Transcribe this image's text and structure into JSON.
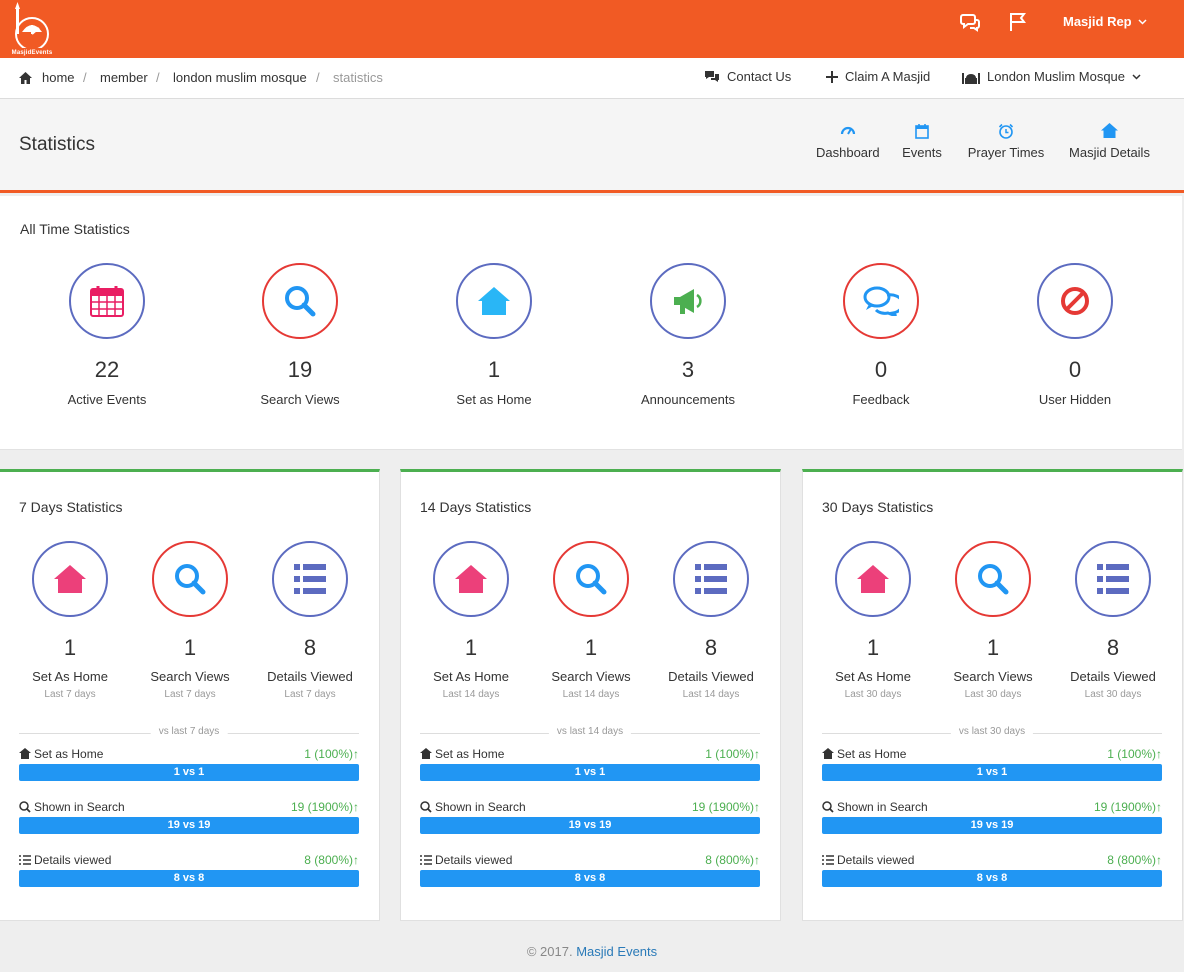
{
  "brand": {
    "logo_text": "MasjidEvents",
    "color": "#f15a24"
  },
  "topbar": {
    "user": "Masjid Rep",
    "icons": [
      "chat-icon",
      "flag-icon"
    ]
  },
  "breadcrumb": [
    "home",
    "member",
    "london muslim mosque",
    "statistics"
  ],
  "topnav": {
    "contact": "Contact Us",
    "claim": "Claim A Masjid",
    "masjid": "London Muslim Mosque"
  },
  "page": {
    "title": "Statistics",
    "nav": [
      "Dashboard",
      "Events",
      "Prayer Times",
      "Masjid Details"
    ]
  },
  "alltime": {
    "title": "All Time Statistics",
    "stats": [
      {
        "value": "22",
        "label": "Active Events",
        "icon": "calendar-icon"
      },
      {
        "value": "19",
        "label": "Search Views",
        "icon": "search-icon"
      },
      {
        "value": "1",
        "label": "Set as Home",
        "icon": "home-icon"
      },
      {
        "value": "3",
        "label": "Announcements",
        "icon": "megaphone-icon"
      },
      {
        "value": "0",
        "label": "Feedback",
        "icon": "comments-icon"
      },
      {
        "value": "0",
        "label": "User Hidden",
        "icon": "ban-icon"
      }
    ]
  },
  "periods": [
    {
      "title": "7 Days Statistics",
      "stats": [
        {
          "value": "1",
          "label": "Set As Home",
          "sub": "Last 7 days"
        },
        {
          "value": "1",
          "label": "Search Views",
          "sub": "Last 7 days"
        },
        {
          "value": "8",
          "label": "Details Viewed",
          "sub": "Last 7 days"
        }
      ],
      "vs": "vs last 7 days",
      "rows": [
        {
          "name": "Set as Home",
          "pct": "1 (100%)",
          "bar": "1 vs 1"
        },
        {
          "name": "Shown in Search",
          "pct": "19 (1900%)",
          "bar": "19 vs 19"
        },
        {
          "name": "Details viewed",
          "pct": "8 (800%)",
          "bar": "8 vs 8"
        }
      ]
    },
    {
      "title": "14 Days Statistics",
      "stats": [
        {
          "value": "1",
          "label": "Set As Home",
          "sub": "Last 14 days"
        },
        {
          "value": "1",
          "label": "Search Views",
          "sub": "Last 14 days"
        },
        {
          "value": "8",
          "label": "Details Viewed",
          "sub": "Last 14 days"
        }
      ],
      "vs": "vs last 14 days",
      "rows": [
        {
          "name": "Set as Home",
          "pct": "1 (100%)",
          "bar": "1 vs 1"
        },
        {
          "name": "Shown in Search",
          "pct": "19 (1900%)",
          "bar": "19 vs 19"
        },
        {
          "name": "Details viewed",
          "pct": "8 (800%)",
          "bar": "8 vs 8"
        }
      ]
    },
    {
      "title": "30 Days Statistics",
      "stats": [
        {
          "value": "1",
          "label": "Set As Home",
          "sub": "Last 30 days"
        },
        {
          "value": "1",
          "label": "Search Views",
          "sub": "Last 30 days"
        },
        {
          "value": "8",
          "label": "Details Viewed",
          "sub": "Last 30 days"
        }
      ],
      "vs": "vs last 30 days",
      "rows": [
        {
          "name": "Set as Home",
          "pct": "1 (100%)",
          "bar": "1 vs 1"
        },
        {
          "name": "Shown in Search",
          "pct": "19 (1900%)",
          "bar": "19 vs 19"
        },
        {
          "name": "Details viewed",
          "pct": "8 (800%)",
          "bar": "8 vs 8"
        }
      ]
    }
  ],
  "footer": {
    "copyright": "© 2017.",
    "link": "Masjid Events"
  }
}
